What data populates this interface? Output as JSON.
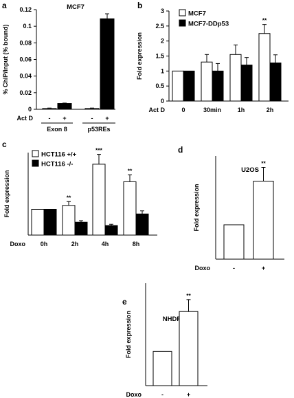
{
  "chart_data": [
    {
      "id": "a",
      "panel_label": "a",
      "type": "bar",
      "title": "MCF7",
      "ylabel": "% ChIP/Input (% bound)",
      "ylim": [
        0,
        0.12
      ],
      "yticks": [
        0,
        0.02,
        0.04,
        0.06,
        0.08,
        0.1,
        0.12
      ],
      "treatment_label": "Act D",
      "treatment_marks": [
        "-",
        "+",
        "-",
        "+"
      ],
      "group_labels": [
        "Exon 8",
        "p53REs"
      ],
      "series": [
        {
          "values": [
            0.001,
            0.007,
            0.001,
            0.109
          ],
          "errors": [
            0.0005,
            0.0005,
            0.0005,
            0.006
          ]
        }
      ],
      "bar_fills": [
        "#ffffff",
        "#000000",
        "#ffffff",
        "#000000"
      ],
      "significance": [
        "",
        "",
        "",
        ""
      ]
    },
    {
      "id": "b",
      "panel_label": "b",
      "type": "bar",
      "ylabel": "Fold expression",
      "ylim": [
        0,
        3
      ],
      "yticks": [
        0,
        0.5,
        1,
        1.5,
        2,
        2.5,
        3
      ],
      "treatment_label": "Act D",
      "categories": [
        "0",
        "30min",
        "1h",
        "2h"
      ],
      "series": [
        {
          "name": "MCF7",
          "values": [
            1.0,
            1.3,
            1.55,
            2.25
          ],
          "errors": [
            0,
            0.25,
            0.32,
            0.3
          ]
        },
        {
          "name": "MCF7-DDp53",
          "values": [
            1.0,
            1.0,
            1.2,
            1.27
          ],
          "errors": [
            0,
            0.25,
            0.25,
            0.27
          ]
        }
      ],
      "significance": [
        "",
        "",
        "",
        "**"
      ]
    },
    {
      "id": "c",
      "panel_label": "c",
      "type": "bar",
      "ylabel": "Fold expression",
      "ylim": [
        0,
        3.2
      ],
      "treatment_label": "Doxo",
      "categories": [
        "0h",
        "2h",
        "4h",
        "8h"
      ],
      "series": [
        {
          "name": "HCT116 +/+",
          "values": [
            1.0,
            1.15,
            2.75,
            2.07
          ],
          "errors": [
            0,
            0.15,
            0.38,
            0.27
          ]
        },
        {
          "name": "HCT116 -/-",
          "values": [
            1.0,
            0.5,
            0.37,
            0.82
          ],
          "errors": [
            0,
            0.06,
            0.05,
            0.12
          ]
        }
      ],
      "significance": [
        "",
        "**",
        "***",
        "**"
      ]
    },
    {
      "id": "d",
      "panel_label": "d",
      "type": "bar",
      "title": "U2OS",
      "ylabel": "Fold expression",
      "ylim": [
        0,
        3
      ],
      "treatment_label": "Doxo",
      "categories": [
        "-",
        "+"
      ],
      "series": [
        {
          "values": [
            1.0,
            2.27
          ],
          "errors": [
            0,
            0.4
          ]
        }
      ],
      "bar_fills": [
        "#ffffff",
        "#ffffff"
      ],
      "significance": [
        "",
        "**"
      ]
    },
    {
      "id": "e",
      "panel_label": "e",
      "type": "bar",
      "title": "NHDF",
      "ylabel": "Fold expression",
      "ylim": [
        0,
        3
      ],
      "treatment_label": "Doxo",
      "categories": [
        "-",
        "+"
      ],
      "series": [
        {
          "values": [
            1.0,
            2.17
          ],
          "errors": [
            0,
            0.35
          ]
        }
      ],
      "bar_fills": [
        "#ffffff",
        "#ffffff"
      ],
      "significance": [
        "",
        "**"
      ]
    }
  ]
}
